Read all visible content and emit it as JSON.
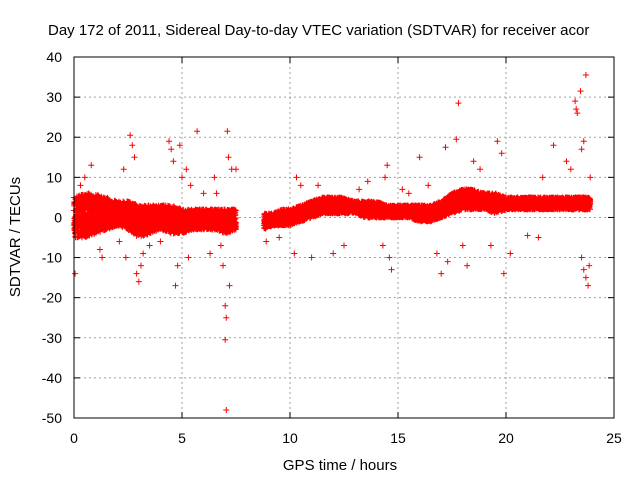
{
  "chart_data": {
    "type": "scatter",
    "title": "Day 172 of 2011, Sidereal Day-to-day VTEC variation (SDTVAR) for receiver acor",
    "xlabel": "GPS time / hours",
    "ylabel": "SDTVAR / TECUs",
    "xlim": [
      0,
      25
    ],
    "ylim": [
      -50,
      40
    ],
    "xticks": [
      0,
      5,
      10,
      15,
      20,
      25
    ],
    "yticks": [
      -50,
      -40,
      -30,
      -20,
      -10,
      0,
      10,
      20,
      30,
      40
    ],
    "grid": true,
    "marker": "+",
    "series_color": "#ff0000",
    "band": [
      [
        0.0,
        -5,
        5
      ],
      [
        0.5,
        -5,
        6
      ],
      [
        1.0,
        -4,
        6
      ],
      [
        1.5,
        -3,
        5
      ],
      [
        2.0,
        -2,
        4
      ],
      [
        2.5,
        -3,
        4
      ],
      [
        3.0,
        -5,
        3
      ],
      [
        3.5,
        -4,
        3
      ],
      [
        4.0,
        -3,
        3
      ],
      [
        4.5,
        -4,
        3
      ],
      [
        5.0,
        -4,
        2
      ],
      [
        5.5,
        -3,
        2
      ],
      [
        6.0,
        -3,
        2
      ],
      [
        6.5,
        -3,
        2
      ],
      [
        7.0,
        -4,
        2
      ],
      [
        7.5,
        -3,
        2
      ],
      [
        8.8,
        -3,
        1
      ],
      [
        9.2,
        -2,
        1
      ],
      [
        9.6,
        -2,
        2
      ],
      [
        10.0,
        -2,
        2
      ],
      [
        10.5,
        -1,
        3
      ],
      [
        11.0,
        0,
        4
      ],
      [
        11.5,
        1,
        5
      ],
      [
        12.0,
        1,
        5
      ],
      [
        12.5,
        1,
        5
      ],
      [
        13.0,
        1,
        4
      ],
      [
        13.5,
        0,
        4
      ],
      [
        14.0,
        0,
        4
      ],
      [
        14.5,
        0,
        3
      ],
      [
        15.0,
        0,
        3
      ],
      [
        15.5,
        0,
        3
      ],
      [
        16.0,
        -1,
        3
      ],
      [
        16.5,
        -1,
        3
      ],
      [
        17.0,
        0,
        4
      ],
      [
        17.5,
        1,
        6
      ],
      [
        18.0,
        2,
        7
      ],
      [
        18.5,
        2,
        7
      ],
      [
        19.0,
        2,
        6
      ],
      [
        19.5,
        1,
        6
      ],
      [
        20.0,
        2,
        5
      ],
      [
        20.5,
        2,
        5
      ],
      [
        21.0,
        2,
        5
      ],
      [
        21.5,
        2,
        5
      ],
      [
        22.0,
        2,
        5
      ],
      [
        22.5,
        2,
        5
      ],
      [
        23.0,
        2,
        5
      ],
      [
        23.5,
        2,
        5
      ],
      [
        23.9,
        2,
        5
      ]
    ],
    "outliers": [
      [
        0.05,
        -14
      ],
      [
        0.3,
        8
      ],
      [
        0.5,
        10
      ],
      [
        0.8,
        13
      ],
      [
        1.2,
        -8
      ],
      [
        1.3,
        -10
      ],
      [
        2.1,
        -6
      ],
      [
        2.3,
        12
      ],
      [
        2.4,
        -10
      ],
      [
        2.6,
        20.5
      ],
      [
        2.7,
        18
      ],
      [
        2.8,
        15
      ],
      [
        2.9,
        -14
      ],
      [
        3.0,
        -16
      ],
      [
        3.1,
        -12
      ],
      [
        3.2,
        -9
      ],
      [
        3.5,
        -7
      ],
      [
        4.0,
        -6
      ],
      [
        4.4,
        19
      ],
      [
        4.5,
        17
      ],
      [
        4.6,
        14
      ],
      [
        4.7,
        -17
      ],
      [
        4.8,
        -12
      ],
      [
        4.9,
        18
      ],
      [
        5.0,
        10
      ],
      [
        5.2,
        12
      ],
      [
        5.3,
        -10
      ],
      [
        5.4,
        8
      ],
      [
        5.7,
        21.5
      ],
      [
        6.0,
        6
      ],
      [
        6.3,
        -9
      ],
      [
        6.5,
        10
      ],
      [
        6.6,
        6
      ],
      [
        6.8,
        -7
      ],
      [
        6.9,
        -12
      ],
      [
        7.0,
        -22
      ],
      [
        7.05,
        -25
      ],
      [
        7.0,
        -30.5
      ],
      [
        7.05,
        -48
      ],
      [
        7.1,
        21.5
      ],
      [
        7.15,
        15
      ],
      [
        7.2,
        -17
      ],
      [
        7.3,
        12
      ],
      [
        7.5,
        12
      ],
      [
        8.9,
        -6
      ],
      [
        9.5,
        -5
      ],
      [
        10.2,
        -9
      ],
      [
        10.3,
        10
      ],
      [
        10.5,
        8
      ],
      [
        11.0,
        -10
      ],
      [
        11.3,
        8
      ],
      [
        12.0,
        -9
      ],
      [
        12.5,
        -7
      ],
      [
        13.2,
        7
      ],
      [
        13.6,
        9
      ],
      [
        14.3,
        -7
      ],
      [
        14.4,
        10
      ],
      [
        14.5,
        13
      ],
      [
        14.6,
        -10
      ],
      [
        14.7,
        -13
      ],
      [
        15.2,
        7
      ],
      [
        15.5,
        6
      ],
      [
        16.0,
        15
      ],
      [
        16.4,
        8
      ],
      [
        16.8,
        -9
      ],
      [
        17.0,
        -14
      ],
      [
        17.2,
        17.5
      ],
      [
        17.3,
        -11
      ],
      [
        17.7,
        19.5
      ],
      [
        17.8,
        28.5
      ],
      [
        18.0,
        -7
      ],
      [
        18.2,
        -12
      ],
      [
        18.5,
        14
      ],
      [
        18.8,
        12
      ],
      [
        19.3,
        -7
      ],
      [
        19.6,
        19
      ],
      [
        19.8,
        16
      ],
      [
        19.9,
        -14
      ],
      [
        20.2,
        -9
      ],
      [
        21.0,
        -4.5
      ],
      [
        21.5,
        -5
      ],
      [
        21.7,
        10
      ],
      [
        22.2,
        18
      ],
      [
        22.8,
        14
      ],
      [
        23.0,
        12
      ],
      [
        23.2,
        29
      ],
      [
        23.25,
        27
      ],
      [
        23.3,
        26
      ],
      [
        23.45,
        31.5
      ],
      [
        23.7,
        35.5
      ],
      [
        23.6,
        19
      ],
      [
        23.5,
        17
      ],
      [
        23.5,
        -10
      ],
      [
        23.6,
        -13
      ],
      [
        23.7,
        -15
      ],
      [
        23.8,
        -17
      ],
      [
        23.85,
        -12
      ],
      [
        23.9,
        10
      ]
    ]
  }
}
